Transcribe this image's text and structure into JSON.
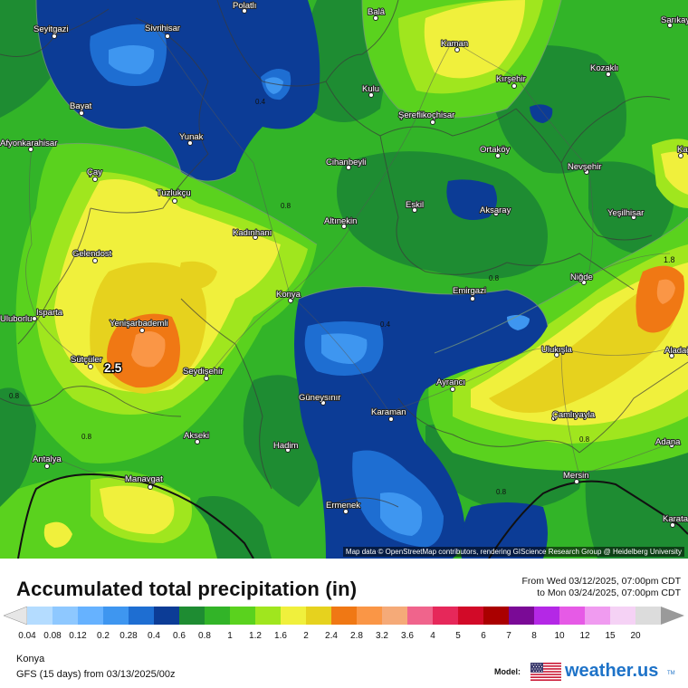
{
  "header": {
    "title": "Accumulated total precipitation (in)",
    "date_from": "From Wed 03/12/2025, 07:00pm CDT",
    "date_to": "to Mon 03/24/2025, 07:00pm CDT"
  },
  "map": {
    "attribution": "Map data © OpenStreetMap contributors, rendering GIScience Research Group @ Heidelberg University",
    "cities": [
      {
        "name": "Polatlı",
        "id": "polatli"
      },
      {
        "name": "Balâ",
        "id": "bala"
      },
      {
        "name": "Sarıkaya",
        "id": "sarikaya"
      },
      {
        "name": "Seyitgazi",
        "id": "seyitgazi"
      },
      {
        "name": "Sivrihisar",
        "id": "sivrihisar"
      },
      {
        "name": "Kaman",
        "id": "kaman"
      },
      {
        "name": "Kırşehir",
        "id": "kirsehir"
      },
      {
        "name": "Kozaklı",
        "id": "kozakli"
      },
      {
        "name": "Kulu",
        "id": "kulu"
      },
      {
        "name": "Bayat",
        "id": "bayat"
      },
      {
        "name": "Şereflikoçhisar",
        "id": "sereflikochisar"
      },
      {
        "name": "Afyonkarahisar",
        "id": "afyonkarahisar"
      },
      {
        "name": "Yunak",
        "id": "yunak"
      },
      {
        "name": "Ortaköy",
        "id": "ortakoy"
      },
      {
        "name": "Cihanbeyli",
        "id": "cihanbeyli"
      },
      {
        "name": "Nevşehir",
        "id": "nevsehir"
      },
      {
        "name": "Çay",
        "id": "cay"
      },
      {
        "name": "Tuzlukçu",
        "id": "tuzlukcu"
      },
      {
        "name": "Eskil",
        "id": "eskil"
      },
      {
        "name": "Aksaray",
        "id": "aksaray"
      },
      {
        "name": "Yeşilhisar",
        "id": "yesilhisar"
      },
      {
        "name": "Altınekin",
        "id": "altinekin"
      },
      {
        "name": "Kadınhanı",
        "id": "kadinhani"
      },
      {
        "name": "Gelendost",
        "id": "gelendost"
      },
      {
        "name": "Niğde",
        "id": "nigde"
      },
      {
        "name": "Konya",
        "id": "konya"
      },
      {
        "name": "Emirgazi",
        "id": "emirgazi"
      },
      {
        "name": "Isparta",
        "id": "isparta"
      },
      {
        "name": "Yenişarbademli",
        "id": "yenisarbademli"
      },
      {
        "name": "Ulukışla",
        "id": "ulukisla"
      },
      {
        "name": "Sütçüler",
        "id": "sutculer"
      },
      {
        "name": "Seydişehir",
        "id": "seydisehir"
      },
      {
        "name": "Ayrancı",
        "id": "ayranci"
      },
      {
        "name": "Güneysınır",
        "id": "guneysinir"
      },
      {
        "name": "Karaman",
        "id": "karaman"
      },
      {
        "name": "Çamlıyayla",
        "id": "camliyayla"
      },
      {
        "name": "Akseki",
        "id": "akseki"
      },
      {
        "name": "Hadim",
        "id": "hadim"
      },
      {
        "name": "Adana",
        "id": "adana"
      },
      {
        "name": "Antalya",
        "id": "antalya"
      },
      {
        "name": "Manavgat",
        "id": "manavgat"
      },
      {
        "name": "Mersin",
        "id": "mersin"
      },
      {
        "name": "Ermenek",
        "id": "ermenek"
      },
      {
        "name": "Karataş",
        "id": "karatas"
      },
      {
        "name": "Aladağ",
        "id": "aladag"
      },
      {
        "name": "Kayseri",
        "id": "kayseri"
      },
      {
        "name": "Uluborlu",
        "id": "uluborlu"
      }
    ],
    "contour_labels": [
      "0.4",
      "0.8",
      "0.8",
      "0.8",
      "0.4",
      "0.8",
      "0.8",
      "0.8"
    ],
    "max_labels": [
      "2.5",
      "1.8"
    ]
  },
  "legend": {
    "ticks": [
      "0.04",
      "0.08",
      "0.12",
      "0.2",
      "0.28",
      "0.4",
      "0.6",
      "0.8",
      "1",
      "1.2",
      "1.6",
      "2",
      "2.4",
      "2.8",
      "3.2",
      "3.6",
      "4",
      "5",
      "6",
      "7",
      "8",
      "10",
      "12",
      "15",
      "20"
    ],
    "colors": [
      "#b4dcff",
      "#8ec8ff",
      "#66b2ff",
      "#3e96f0",
      "#1e6ed2",
      "#0c3c96",
      "#1e8c32",
      "#32b428",
      "#5ad21e",
      "#a0e61e",
      "#f0f03c",
      "#e6d21e",
      "#f07814",
      "#fa9646",
      "#f5aa78",
      "#f0648c",
      "#e6285a",
      "#d20a28",
      "#aa0000",
      "#7a0a96",
      "#b428e6",
      "#e65ae6",
      "#f09bf0",
      "#f5d2f5",
      "#dcdcdc"
    ],
    "left_end_color": "#e6e6e6",
    "right_end_color": "#9a9a9a"
  },
  "footer": {
    "location": "Konya",
    "model_run": "GFS (15 days) from  03/13/2025/00z",
    "model_label": "Model:",
    "brand": "weather.us",
    "brand_sup": "TM"
  }
}
